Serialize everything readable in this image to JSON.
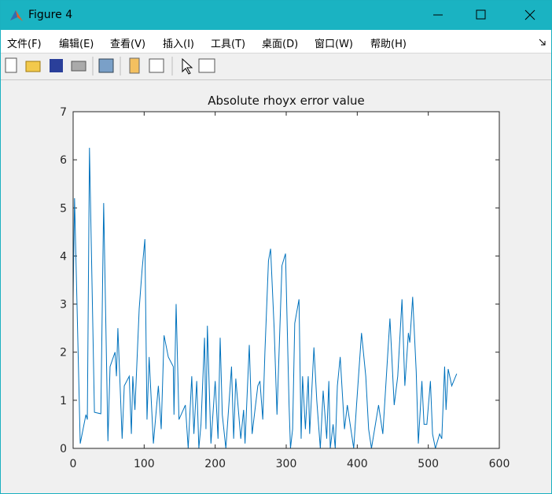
{
  "window": {
    "title": "Figure 4"
  },
  "menu": {
    "items": [
      "文件(F)",
      "编辑(E)",
      "查看(V)",
      "插入(I)",
      "工具(T)",
      "桌面(D)",
      "窗口(W)",
      "帮助(H)"
    ]
  },
  "chart_data": {
    "type": "line",
    "title": "Absolute rhoyx error value",
    "x": [
      0,
      2,
      10,
      18,
      20,
      23,
      30,
      39,
      43,
      49,
      52,
      59,
      61,
      63,
      69,
      72,
      79,
      82,
      84,
      87,
      93,
      97,
      101,
      104,
      107,
      113,
      120,
      124,
      128,
      134,
      141,
      142,
      145,
      149,
      158,
      162,
      167,
      170,
      174,
      177,
      180,
      185,
      187,
      189,
      194,
      200,
      204,
      207,
      210,
      215,
      223,
      226,
      229,
      236,
      240,
      242,
      248,
      252,
      260,
      263,
      267,
      270,
      275,
      278,
      283,
      287,
      294,
      299,
      304,
      306,
      309,
      312,
      318,
      321,
      323,
      327,
      331,
      333,
      339,
      343,
      348,
      352,
      357,
      360,
      362,
      366,
      369,
      372,
      376,
      382,
      386,
      390,
      395,
      399,
      406,
      412,
      416,
      420,
      430,
      436,
      446,
      452,
      457,
      463,
      467,
      472,
      474,
      478,
      483,
      486,
      491,
      494,
      498,
      503,
      506,
      510,
      516,
      519,
      523,
      525,
      528,
      533,
      540
    ],
    "series": [
      {
        "color": "#0072bd",
        "values": [
          3.1,
          5.2,
          0.1,
          0.7,
          0.6,
          6.25,
          0.75,
          0.72,
          5.1,
          0.15,
          1.7,
          2.0,
          1.5,
          2.5,
          0.2,
          1.3,
          1.5,
          0.3,
          1.5,
          0.8,
          2.9,
          3.7,
          4.35,
          0.6,
          1.9,
          0.1,
          1.3,
          0.4,
          2.35,
          1.9,
          1.7,
          0.7,
          3.0,
          0.6,
          0.9,
          0,
          1.5,
          0.3,
          1.4,
          0,
          0.5,
          2.3,
          0.4,
          2.55,
          0.1,
          1.4,
          0.2,
          2.3,
          0.7,
          0,
          1.7,
          0.2,
          1.45,
          0.2,
          0.8,
          0.1,
          2.15,
          0.3,
          1.3,
          1.4,
          0.6,
          2.0,
          3.9,
          4.15,
          2.5,
          0.7,
          3.8,
          4.05,
          0.9,
          0,
          0.4,
          2.6,
          3.1,
          0.2,
          1.5,
          0.4,
          1.5,
          0.3,
          2.1,
          1.0,
          0,
          1.2,
          0.2,
          1.4,
          0,
          0.5,
          0,
          1.3,
          1.9,
          0.4,
          0.9,
          0.5,
          0,
          0.9,
          2.4,
          1.5,
          0.4,
          0,
          0.9,
          0.3,
          2.7,
          0.9,
          1.5,
          3.1,
          1.3,
          2.4,
          2.2,
          3.15,
          1.6,
          0.1,
          1.4,
          0.5,
          0.5,
          1.4,
          0.3,
          0,
          0.3,
          0.2,
          1.7,
          0.8,
          1.65,
          1.3,
          1.55
        ]
      }
    ],
    "xlim": [
      0,
      600
    ],
    "ylim": [
      0,
      7
    ],
    "xticks": [
      0,
      100,
      200,
      300,
      400,
      500,
      600
    ],
    "yticks": [
      0,
      1,
      2,
      3,
      4,
      5,
      6,
      7
    ]
  }
}
